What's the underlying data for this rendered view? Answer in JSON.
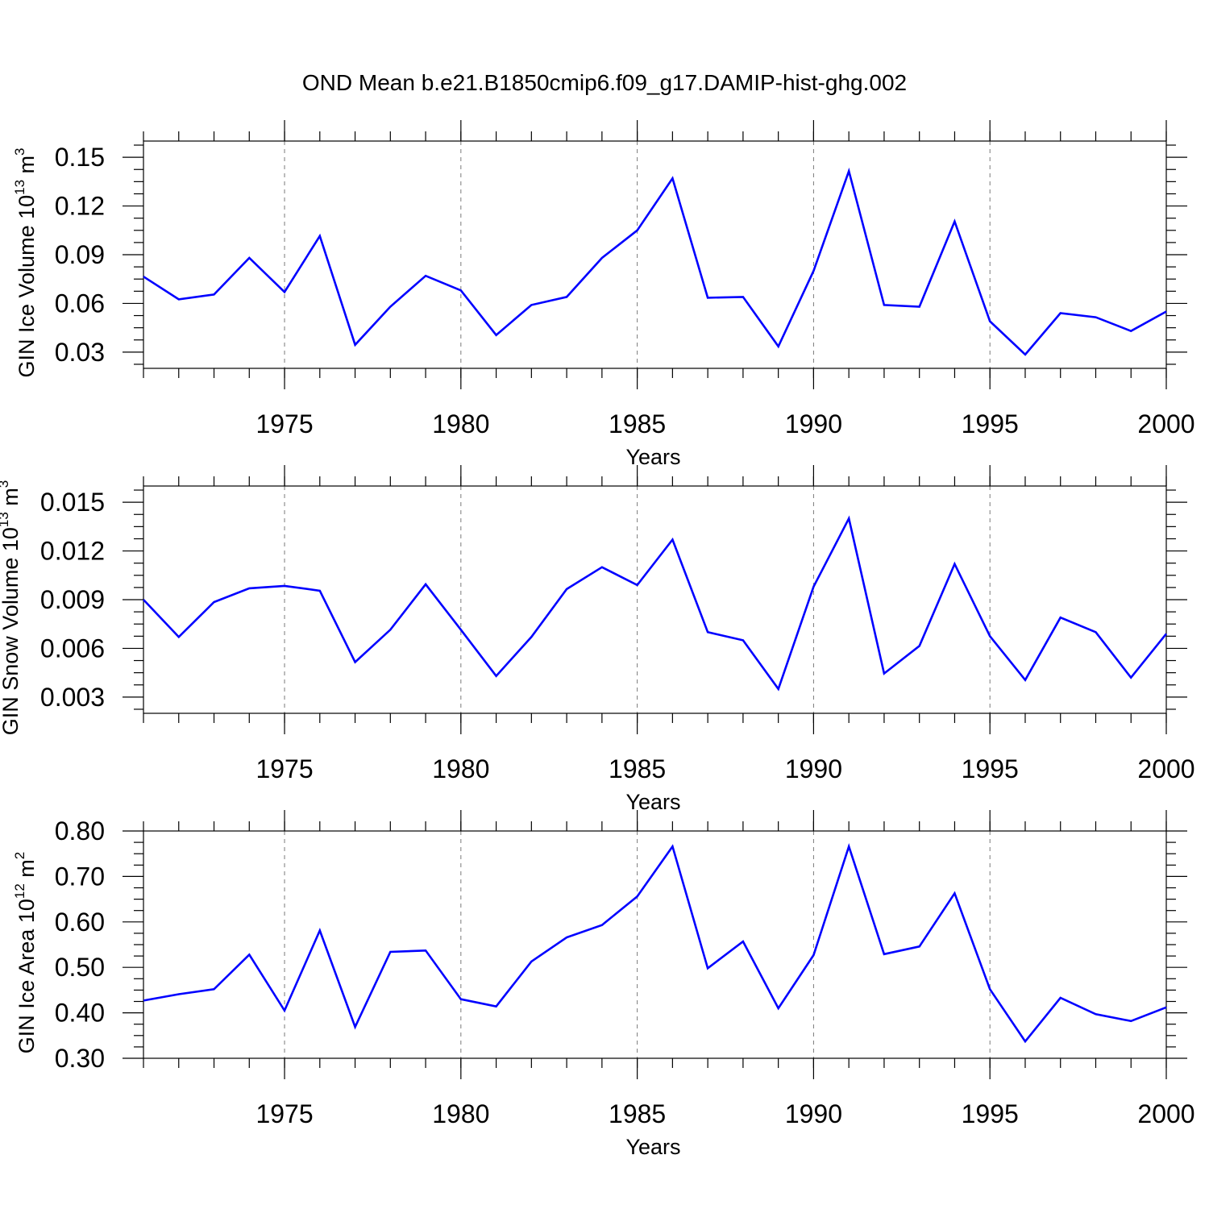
{
  "figure_title": "OND Mean b.e21.B1850cmip6.f09_g17.DAMIP-hist-ghg.002",
  "colors": {
    "line": "#0000ff",
    "axes": "#000000",
    "grid": "#7a7a7a"
  },
  "chart_data": [
    {
      "type": "line",
      "xlabel": "Years",
      "ylabel": "GIN Ice Volume 10",
      "ylabel_exp": "13",
      "ylabel_unit": " m",
      "ylabel_unit_exp": "3",
      "xlim": [
        1971,
        2000
      ],
      "ylim": [
        0.02,
        0.16
      ],
      "yticks": [
        0.03,
        0.06,
        0.09,
        0.12,
        0.15
      ],
      "ytick_labels": [
        "0.03",
        "0.06",
        "0.09",
        "0.12",
        "0.15"
      ],
      "xticks": [
        1975,
        1980,
        1985,
        1990,
        1995,
        2000
      ],
      "xtick_labels": [
        "1975",
        "1980",
        "1985",
        "1990",
        "1995",
        "2000"
      ],
      "grid": "vertical dashed at labeled years",
      "x": [
        1971,
        1972,
        1973,
        1974,
        1975,
        1976,
        1977,
        1978,
        1979,
        1980,
        1981,
        1982,
        1983,
        1984,
        1985,
        1986,
        1987,
        1988,
        1989,
        1990,
        1991,
        1992,
        1993,
        1994,
        1995,
        1996,
        1997,
        1998,
        1999,
        2000
      ],
      "series": [
        {
          "values": [
            0.0765,
            0.0625,
            0.0655,
            0.088,
            0.067,
            0.1015,
            0.0345,
            0.058,
            0.077,
            0.068,
            0.0405,
            0.059,
            0.064,
            0.088,
            0.105,
            0.137,
            0.0635,
            0.064,
            0.0335,
            0.08,
            0.1415,
            0.059,
            0.058,
            0.1105,
            0.049,
            0.0285,
            0.054,
            0.0515,
            0.043,
            0.055
          ]
        }
      ]
    },
    {
      "type": "line",
      "xlabel": "Years",
      "ylabel": "GIN Snow Volume 10",
      "ylabel_exp": "13",
      "ylabel_unit": " m",
      "ylabel_unit_exp": "3",
      "xlim": [
        1971,
        2000
      ],
      "ylim": [
        0.002,
        0.016
      ],
      "yticks": [
        0.003,
        0.006,
        0.009,
        0.012,
        0.015
      ],
      "ytick_labels": [
        "0.003",
        "0.006",
        "0.009",
        "0.012",
        "0.015"
      ],
      "xticks": [
        1975,
        1980,
        1985,
        1990,
        1995,
        2000
      ],
      "xtick_labels": [
        "1975",
        "1980",
        "1985",
        "1990",
        "1995",
        "2000"
      ],
      "grid": "vertical dashed at labeled years",
      "x": [
        1971,
        1972,
        1973,
        1974,
        1975,
        1976,
        1977,
        1978,
        1979,
        1980,
        1981,
        1982,
        1983,
        1984,
        1985,
        1986,
        1987,
        1988,
        1989,
        1990,
        1991,
        1992,
        1993,
        1994,
        1995,
        1996,
        1997,
        1998,
        1999,
        2000
      ],
      "series": [
        {
          "values": [
            0.009,
            0.0067,
            0.00885,
            0.0097,
            0.00985,
            0.00955,
            0.00515,
            0.00715,
            0.00995,
            0.00715,
            0.0043,
            0.0067,
            0.00965,
            0.011,
            0.0099,
            0.0127,
            0.007,
            0.0065,
            0.0035,
            0.0098,
            0.014,
            0.00445,
            0.00615,
            0.0112,
            0.00675,
            0.00405,
            0.0079,
            0.007,
            0.0042,
            0.0069
          ]
        }
      ]
    },
    {
      "type": "line",
      "xlabel": "Years",
      "ylabel": "GIN Ice Area 10",
      "ylabel_exp": "12",
      "ylabel_unit": " m",
      "ylabel_unit_exp": "2",
      "xlim": [
        1971,
        2000
      ],
      "ylim": [
        0.3,
        0.8
      ],
      "yticks": [
        0.3,
        0.4,
        0.5,
        0.6,
        0.7,
        0.8
      ],
      "ytick_labels": [
        "0.30",
        "0.40",
        "0.50",
        "0.60",
        "0.70",
        "0.80"
      ],
      "xticks": [
        1975,
        1980,
        1985,
        1990,
        1995,
        2000
      ],
      "xtick_labels": [
        "1975",
        "1980",
        "1985",
        "1990",
        "1995",
        "2000"
      ],
      "grid": "vertical dashed at labeled years",
      "x": [
        1971,
        1972,
        1973,
        1974,
        1975,
        1976,
        1977,
        1978,
        1979,
        1980,
        1981,
        1982,
        1983,
        1984,
        1985,
        1986,
        1987,
        1988,
        1989,
        1990,
        1991,
        1992,
        1993,
        1994,
        1995,
        1996,
        1997,
        1998,
        1999,
        2000
      ],
      "series": [
        {
          "values": [
            0.427,
            0.441,
            0.452,
            0.528,
            0.405,
            0.581,
            0.369,
            0.534,
            0.537,
            0.43,
            0.414,
            0.513,
            0.566,
            0.593,
            0.656,
            0.766,
            0.498,
            0.557,
            0.41,
            0.527,
            0.766,
            0.529,
            0.546,
            0.663,
            0.452,
            0.337,
            0.433,
            0.397,
            0.382,
            0.412
          ]
        }
      ]
    }
  ]
}
